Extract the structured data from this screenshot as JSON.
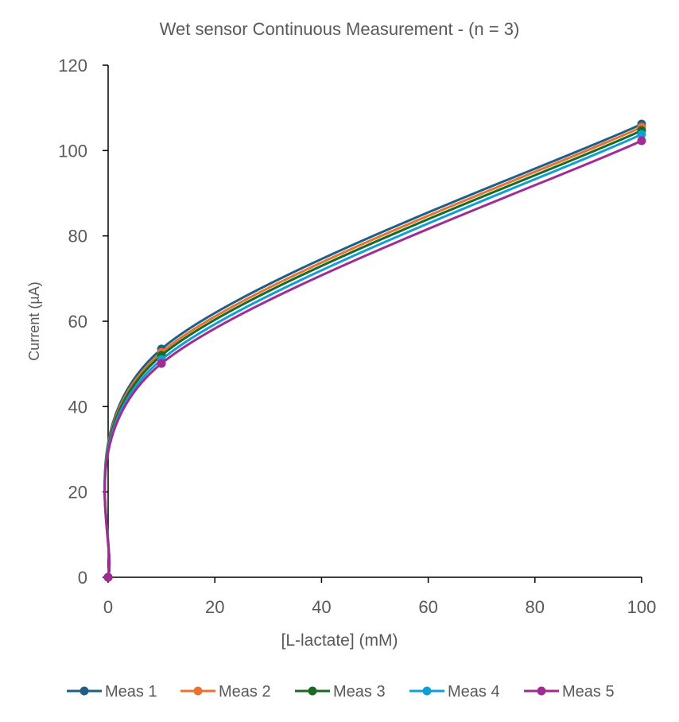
{
  "chart_data": {
    "type": "line",
    "title": "Wet sensor Continuous Measurement  - (n = 3)",
    "xlabel": "[L-lactate] (mM)",
    "ylabel": "Current (µA)",
    "x": [
      0,
      10,
      100
    ],
    "xlim": [
      0,
      100
    ],
    "ylim": [
      0,
      120
    ],
    "xticks": [
      "0",
      "20",
      "40",
      "60",
      "80",
      "100"
    ],
    "yticks": [
      "0",
      "20",
      "40",
      "60",
      "80",
      "100",
      "120"
    ],
    "grid": false,
    "smoothed": true,
    "legend": "bottom",
    "series": [
      {
        "name": "Meas 1",
        "color": "#1f5f85",
        "values": [
          0,
          53.5,
          106.2
        ]
      },
      {
        "name": "Meas 2",
        "color": "#e97132",
        "values": [
          0,
          52.7,
          105.5
        ]
      },
      {
        "name": "Meas 3",
        "color": "#196b24",
        "values": [
          0,
          52.0,
          104.7
        ]
      },
      {
        "name": "Meas 4",
        "color": "#0f9ed5",
        "values": [
          0,
          51.0,
          103.8
        ]
      },
      {
        "name": "Meas 5",
        "color": "#a02b93",
        "values": [
          0,
          50.1,
          102.3
        ]
      }
    ]
  }
}
